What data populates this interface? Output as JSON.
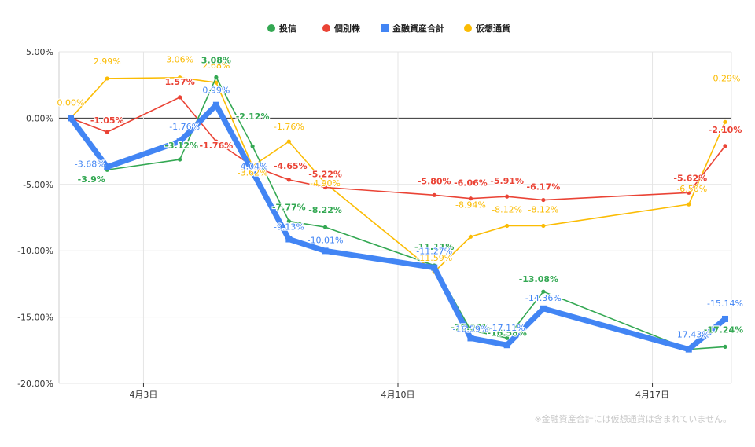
{
  "chart_data": {
    "type": "line",
    "footnote": "※金融資産合計には仮想通貨は含まれていません。",
    "y_ticks": [
      "5.00%",
      "0.00%",
      "-5.00%",
      "-10.00%",
      "-15.00%",
      "-20.00%"
    ],
    "y_tick_values": [
      5,
      0,
      -5,
      -10,
      -15,
      -20
    ],
    "ylim": [
      -20,
      5
    ],
    "x_range": [
      "2024-04-01",
      "2024-04-19"
    ],
    "x_ticks": [
      {
        "label": "4月3日",
        "date": "2024-04-03"
      },
      {
        "label": "4月10日",
        "date": "2024-04-10"
      },
      {
        "label": "4月17日",
        "date": "2024-04-17"
      }
    ],
    "grid": true,
    "legend_position": "top",
    "series": [
      {
        "name": "投信",
        "color": "#34a853",
        "width": 1.6,
        "points": [
          {
            "x": "2024-04-01",
            "y": 0.0,
            "label": ""
          },
          {
            "x": "2024-04-02",
            "y": -3.9,
            "label": "-3.9%"
          },
          {
            "x": "2024-04-04",
            "y": -3.12,
            "label": "-3.12%"
          },
          {
            "x": "2024-04-05",
            "y": 3.08,
            "label": "3.08%"
          },
          {
            "x": "2024-04-06",
            "y": -2.12,
            "label": "-2.12%"
          },
          {
            "x": "2024-04-07",
            "y": -7.77,
            "label": "-7.77%"
          },
          {
            "x": "2024-04-08",
            "y": -8.22,
            "label": "-8.22%"
          },
          {
            "x": "2024-04-11",
            "y": -11.11,
            "label": "-11.11%"
          },
          {
            "x": "2024-04-12",
            "y": -15.99,
            "label": "-15.99%"
          },
          {
            "x": "2024-04-13",
            "y": -16.58,
            "label": "-16.58%"
          },
          {
            "x": "2024-04-14",
            "y": -13.08,
            "label": "-13.08%"
          },
          {
            "x": "2024-04-18",
            "y": -17.43,
            "label": ""
          },
          {
            "x": "2024-04-19",
            "y": -17.24,
            "label": "-17.24%"
          }
        ]
      },
      {
        "name": "個別株",
        "color": "#ea4335",
        "width": 1.6,
        "points": [
          {
            "x": "2024-04-01",
            "y": 0.0,
            "label": ""
          },
          {
            "x": "2024-04-02",
            "y": -1.05,
            "label": "-1.05%"
          },
          {
            "x": "2024-04-04",
            "y": 1.57,
            "label": "1.57%"
          },
          {
            "x": "2024-04-05",
            "y": -1.76,
            "label": "-1.76%"
          },
          {
            "x": "2024-04-06",
            "y": -3.62,
            "label": ""
          },
          {
            "x": "2024-04-07",
            "y": -4.65,
            "label": "-4.65%"
          },
          {
            "x": "2024-04-08",
            "y": -5.22,
            "label": "-5.22%"
          },
          {
            "x": "2024-04-11",
            "y": -5.8,
            "label": "-5.80%"
          },
          {
            "x": "2024-04-12",
            "y": -6.06,
            "label": "-6.06%"
          },
          {
            "x": "2024-04-13",
            "y": -5.91,
            "label": "-5.91%"
          },
          {
            "x": "2024-04-14",
            "y": -6.17,
            "label": "-6.17%"
          },
          {
            "x": "2024-04-18",
            "y": -5.62,
            "label": "-5.62%"
          },
          {
            "x": "2024-04-19",
            "y": -2.1,
            "label": "-2.10%"
          }
        ]
      },
      {
        "name": "金融資産合計",
        "color": "#4285f4",
        "width": 7,
        "points": [
          {
            "x": "2024-04-01",
            "y": 0.0,
            "label": ""
          },
          {
            "x": "2024-04-02",
            "y": -3.68,
            "label": "-3.68%"
          },
          {
            "x": "2024-04-04",
            "y": -1.76,
            "label": "-1.76%"
          },
          {
            "x": "2024-04-05",
            "y": 0.99,
            "label": "0.99%"
          },
          {
            "x": "2024-04-06",
            "y": -4.04,
            "label": "-4.04%"
          },
          {
            "x": "2024-04-07",
            "y": -9.13,
            "label": "-9.13%"
          },
          {
            "x": "2024-04-08",
            "y": -10.01,
            "label": "-10.01%"
          },
          {
            "x": "2024-04-11",
            "y": -11.27,
            "label": "-11.27%"
          },
          {
            "x": "2024-04-12",
            "y": -16.59,
            "label": "-16.59%"
          },
          {
            "x": "2024-04-13",
            "y": -17.11,
            "label": "-17.11%"
          },
          {
            "x": "2024-04-14",
            "y": -14.36,
            "label": "-14.36%"
          },
          {
            "x": "2024-04-18",
            "y": -17.43,
            "label": "-17.43%"
          },
          {
            "x": "2024-04-19",
            "y": -15.14,
            "label": "-15.14%"
          }
        ]
      },
      {
        "name": "仮想通貨",
        "color": "#fbbc04",
        "width": 1.6,
        "points": [
          {
            "x": "2024-04-01",
            "y": 0.0,
            "label": "0.00%"
          },
          {
            "x": "2024-04-02",
            "y": 2.99,
            "label": "2.99%"
          },
          {
            "x": "2024-04-04",
            "y": 3.06,
            "label": "3.06%"
          },
          {
            "x": "2024-04-05",
            "y": 2.68,
            "label": "2.68%"
          },
          {
            "x": "2024-04-06",
            "y": -3.62,
            "label": "-3.62%"
          },
          {
            "x": "2024-04-07",
            "y": -1.76,
            "label": "-1.76%"
          },
          {
            "x": "2024-04-08",
            "y": -4.9,
            "label": "-4.90%"
          },
          {
            "x": "2024-04-11",
            "y": -11.59,
            "label": "-11.59%"
          },
          {
            "x": "2024-04-12",
            "y": -8.94,
            "label": "-8.94%"
          },
          {
            "x": "2024-04-13",
            "y": -8.12,
            "label": "-8.12%"
          },
          {
            "x": "2024-04-14",
            "y": -8.12,
            "label": "-8.12%"
          },
          {
            "x": "2024-04-18",
            "y": -6.5,
            "label": "-6.50%"
          },
          {
            "x": "2024-04-19",
            "y": -0.29,
            "label": "-0.29%"
          }
        ]
      }
    ]
  }
}
